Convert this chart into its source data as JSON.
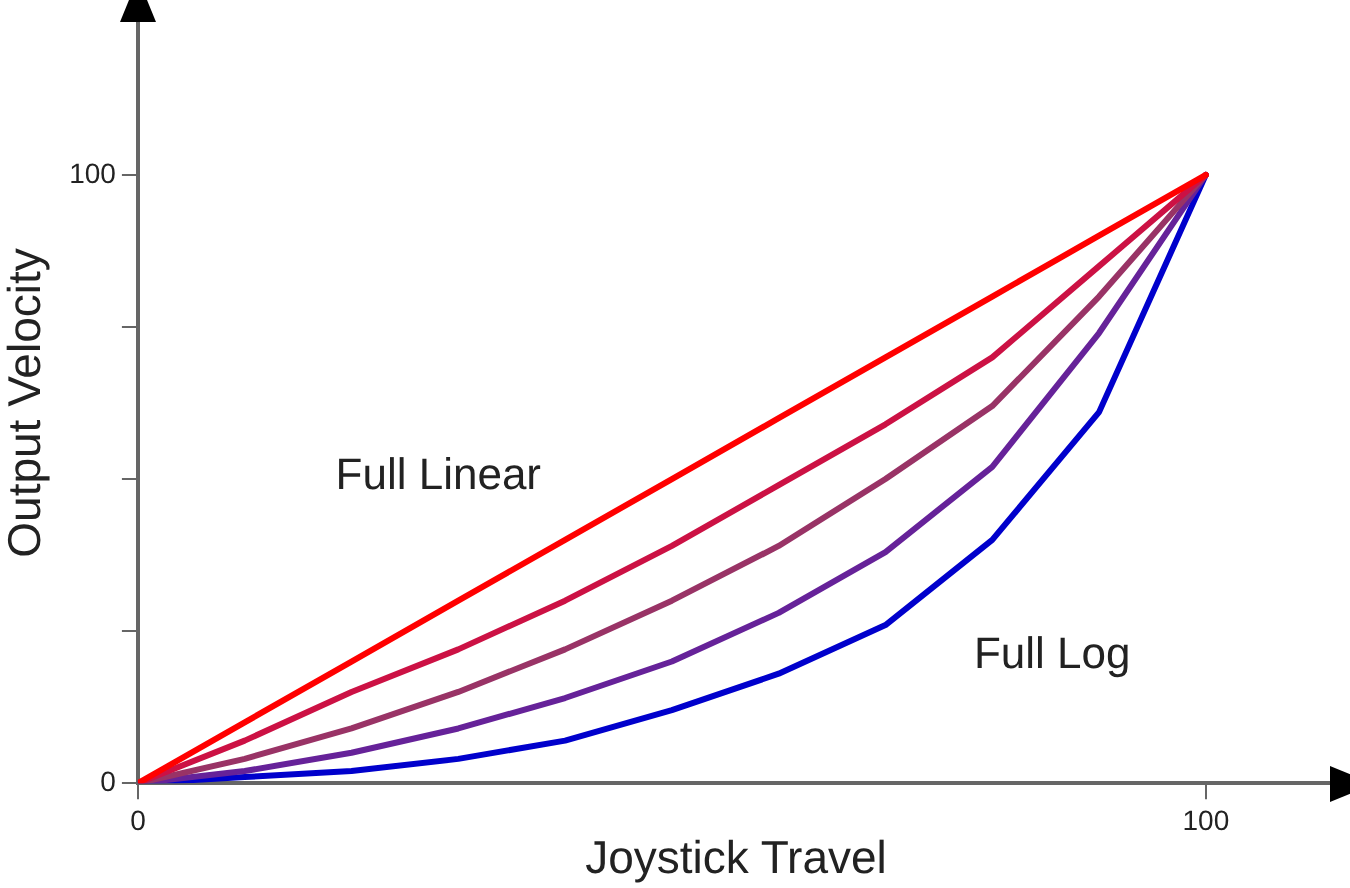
{
  "chart_data": {
    "type": "line",
    "xlabel": "Joystick Travel",
    "ylabel": "Output Velocity",
    "x": [
      0,
      10,
      20,
      30,
      40,
      50,
      60,
      70,
      80,
      90,
      100
    ],
    "series": [
      {
        "name": "Full Linear",
        "color": "#ff0000",
        "values": [
          0,
          10,
          20,
          30,
          40,
          50,
          60,
          70,
          80,
          90,
          100
        ]
      },
      {
        "color": "#cc1144",
        "values": [
          0,
          7,
          15,
          22,
          30,
          39,
          49,
          59,
          70,
          85,
          100
        ]
      },
      {
        "color": "#993366",
        "values": [
          0,
          4,
          9,
          15,
          22,
          30,
          39,
          50,
          62,
          80,
          100
        ]
      },
      {
        "color": "#662299",
        "values": [
          0,
          2,
          5,
          9,
          14,
          20,
          28,
          38,
          52,
          74,
          100
        ]
      },
      {
        "name": "Full Log",
        "color": "#0000cc",
        "values": [
          0,
          1,
          2,
          4,
          7,
          12,
          18,
          26,
          40,
          61,
          100
        ]
      }
    ],
    "xlim": [
      0,
      112
    ],
    "ylim": [
      0,
      125
    ],
    "xticks": [
      0,
      100
    ],
    "yticks": [
      0,
      {
        "value": 25,
        "label": null
      },
      {
        "value": 50,
        "label": null
      },
      {
        "value": 75,
        "label": null
      },
      100
    ],
    "grid": false,
    "legend": false,
    "marker": "none",
    "line_style": "solid"
  }
}
